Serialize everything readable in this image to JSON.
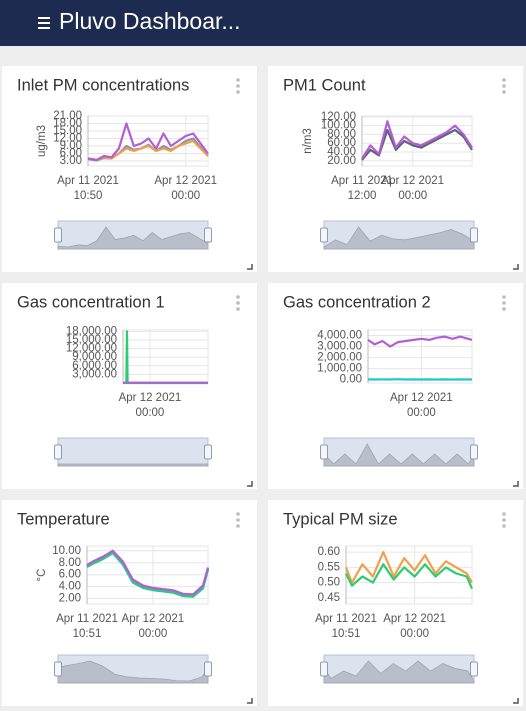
{
  "header": {
    "title": "Pluvo Dashboar..."
  },
  "chart_data": [
    {
      "type": "line",
      "title": "Inlet PM concentrations",
      "ylabel": "ug/m3",
      "x": [
        10.83,
        12,
        13,
        14,
        15,
        16,
        17,
        18,
        19,
        20,
        21,
        22,
        23,
        24,
        25,
        26,
        27
      ],
      "xlim": [
        10.83,
        27
      ],
      "xticks": [
        {
          "value": 10.83,
          "label": [
            "Apr 11 2021",
            "10:50"
          ]
        },
        {
          "value": 24,
          "label": [
            "Apr 12 2021",
            "00:00"
          ]
        }
      ],
      "ylim": [
        1,
        21
      ],
      "yticks": [
        {
          "value": 3,
          "label": "3.00"
        },
        {
          "value": 6,
          "label": "6.00"
        },
        {
          "value": 9,
          "label": "9.00"
        },
        {
          "value": 12,
          "label": "12.00"
        },
        {
          "value": 15,
          "label": "15.00"
        },
        {
          "value": 18,
          "label": "18.00"
        },
        {
          "value": 21,
          "label": "21.00"
        }
      ],
      "grid": true,
      "series": [
        {
          "color": "#8a93a6",
          "values": [
            3.8,
            3.2,
            4.2,
            4,
            6,
            9,
            7.5,
            8,
            9.5,
            7,
            9,
            7.5,
            9,
            11,
            12,
            8.5,
            5
          ]
        },
        {
          "color": "#f0a04b",
          "values": [
            4,
            3.5,
            4.5,
            4,
            6,
            8,
            7,
            8,
            9,
            7,
            8,
            7,
            9,
            10,
            11,
            8,
            5
          ]
        },
        {
          "color": "#b25fd3",
          "values": [
            4,
            3.5,
            5,
            4.5,
            8,
            18,
            9,
            10,
            12,
            8,
            14,
            9,
            11,
            13,
            14,
            10,
            6
          ]
        }
      ]
    },
    {
      "type": "line",
      "title": "PM1 Count",
      "ylabel": "n/m3",
      "x": [
        12,
        14,
        16,
        18,
        20,
        22,
        24,
        26,
        28,
        30,
        32,
        34,
        36,
        38
      ],
      "xlim": [
        12,
        38
      ],
      "xticks": [
        {
          "value": 12,
          "label": [
            "Apr 11 2021",
            "12:00"
          ]
        },
        {
          "value": 24,
          "label": [
            "Apr 12 2021",
            "00:00"
          ]
        }
      ],
      "ylim": [
        8,
        122
      ],
      "yticks": [
        {
          "value": 20,
          "label": "20.00"
        },
        {
          "value": 40,
          "label": "40.00"
        },
        {
          "value": 60,
          "label": "60.00"
        },
        {
          "value": 80,
          "label": "80.00"
        },
        {
          "value": 100,
          "label": "100.00"
        },
        {
          "value": 120,
          "label": "120.00"
        }
      ],
      "grid": true,
      "series": [
        {
          "color": "#5b6478",
          "values": [
            22,
            45,
            32,
            90,
            45,
            65,
            55,
            50,
            60,
            70,
            80,
            90,
            75,
            45
          ]
        },
        {
          "color": "#b25fd3",
          "values": [
            25,
            55,
            35,
            110,
            50,
            75,
            60,
            55,
            65,
            75,
            85,
            100,
            80,
            50
          ]
        }
      ]
    },
    {
      "type": "line",
      "title": "Gas concentration 1",
      "x": [
        17.5,
        18.3,
        18.46,
        18.6,
        20,
        22,
        24,
        26,
        28,
        30,
        32,
        34,
        36,
        38
      ],
      "xlim": [
        17.5,
        38
      ],
      "xticks": [
        {
          "value": 24,
          "label": [
            "Apr 12 2021",
            "00:00"
          ]
        }
      ],
      "ylim": [
        0,
        18500
      ],
      "yticks": [
        {
          "value": 3000,
          "label": "3,000.00"
        },
        {
          "value": 6000,
          "label": "6,000.00"
        },
        {
          "value": 9000,
          "label": "9,000.00"
        },
        {
          "value": 12000,
          "label": "12,000.00"
        },
        {
          "value": 15000,
          "label": "15,000.00"
        },
        {
          "value": 18000,
          "label": "18,000.00"
        }
      ],
      "grid": true,
      "series": [
        {
          "color": "#2ecc71",
          "values": [
            0,
            0,
            18000,
            0,
            0,
            0,
            0,
            0,
            0,
            0,
            0,
            0,
            0,
            0
          ]
        },
        {
          "color": "#b25fd3",
          "values": [
            120,
            120,
            120,
            120,
            120,
            120,
            120,
            120,
            120,
            120,
            120,
            120,
            120,
            120
          ]
        }
      ]
    },
    {
      "type": "line",
      "title": "Gas concentration 2",
      "x": [
        10.3,
        12,
        14,
        16,
        18,
        20,
        22,
        24,
        26,
        28,
        30,
        32,
        34,
        36,
        37
      ],
      "xlim": [
        10.3,
        37
      ],
      "xticks": [
        {
          "value": 24,
          "label": [
            "Apr 12 2021",
            "00:00"
          ]
        }
      ],
      "ylim": [
        -300,
        4500
      ],
      "yticks": [
        {
          "value": 0,
          "label": "0.00"
        },
        {
          "value": 1000,
          "label": "1,000.00"
        },
        {
          "value": 2000,
          "label": "2,000.00"
        },
        {
          "value": 3000,
          "label": "3,000.00"
        },
        {
          "value": 4000,
          "label": "4,000.00"
        }
      ],
      "grid": true,
      "series": [
        {
          "color": "#b25fd3",
          "values": [
            3600,
            3200,
            3500,
            3000,
            3400,
            3500,
            3600,
            3700,
            3600,
            3800,
            3900,
            3700,
            3900,
            3700,
            3600
          ]
        },
        {
          "color": "#26c6c6",
          "values": [
            30,
            20,
            30,
            20,
            40,
            20,
            30,
            20,
            30,
            20,
            30,
            20,
            30,
            20,
            30
          ]
        }
      ]
    },
    {
      "type": "line",
      "title": "Temperature",
      "ylabel": "°C",
      "x": [
        10.85,
        12,
        14,
        16,
        18,
        20,
        22,
        24,
        26,
        28,
        30,
        32,
        34,
        35
      ],
      "xlim": [
        10.85,
        35
      ],
      "xticks": [
        {
          "value": 10.85,
          "label": [
            "Apr 11 2021",
            "10:51"
          ]
        },
        {
          "value": 24,
          "label": [
            "Apr 12 2021",
            "00:00"
          ]
        }
      ],
      "ylim": [
        1.1,
        10.8
      ],
      "yticks": [
        {
          "value": 2,
          "label": "2.00"
        },
        {
          "value": 4,
          "label": "4.00"
        },
        {
          "value": 6,
          "label": "6.00"
        },
        {
          "value": 8,
          "label": "8.00"
        },
        {
          "value": 10,
          "label": "10.00"
        }
      ],
      "grid": true,
      "series": [
        {
          "color": "#3f7fd8",
          "values": [
            7.5,
            8,
            8.8,
            9.8,
            8,
            5,
            4,
            3.6,
            3.4,
            3.2,
            2.6,
            2.5,
            4,
            7
          ]
        },
        {
          "color": "#26c6c6",
          "values": [
            7.3,
            7.8,
            8.6,
            9.6,
            7.7,
            4.7,
            3.8,
            3.4,
            3.2,
            3,
            2.4,
            2.3,
            3.7,
            6.8
          ]
        },
        {
          "color": "#2ecc71",
          "values": [
            7.4,
            7.9,
            8.7,
            9.7,
            7.9,
            4.9,
            3.9,
            3.5,
            3.3,
            3.1,
            2.5,
            2.4,
            3.9,
            6.9
          ]
        },
        {
          "color": "#b25fd3",
          "values": [
            7.6,
            8.2,
            9,
            10,
            8.2,
            5.2,
            4.2,
            3.8,
            3.6,
            3.4,
            2.8,
            2.7,
            4.2,
            7.2
          ]
        }
      ]
    },
    {
      "type": "line",
      "title": "Typical PM size",
      "x": [
        10.85,
        12,
        14,
        16,
        18,
        20,
        22,
        24,
        26,
        28,
        30,
        32,
        34,
        35
      ],
      "xlim": [
        10.85,
        35
      ],
      "xticks": [
        {
          "value": 10.85,
          "label": [
            "Apr 11 2021",
            "10:51"
          ]
        },
        {
          "value": 24,
          "label": [
            "Apr 12 2021",
            "00:00"
          ]
        }
      ],
      "ylim": [
        0.43,
        0.62
      ],
      "yticks": [
        {
          "value": 0.45,
          "label": "0.45"
        },
        {
          "value": 0.5,
          "label": "0.50"
        },
        {
          "value": 0.55,
          "label": "0.55"
        },
        {
          "value": 0.6,
          "label": "0.60"
        }
      ],
      "grid": true,
      "series": [
        {
          "color": "#f0a04b",
          "values": [
            0.55,
            0.5,
            0.56,
            0.52,
            0.6,
            0.52,
            0.58,
            0.54,
            0.59,
            0.53,
            0.57,
            0.55,
            0.53,
            0.5
          ]
        },
        {
          "color": "#2ecc71",
          "values": [
            0.53,
            0.49,
            0.52,
            0.5,
            0.56,
            0.51,
            0.55,
            0.52,
            0.56,
            0.52,
            0.55,
            0.53,
            0.52,
            0.48
          ]
        }
      ]
    }
  ]
}
